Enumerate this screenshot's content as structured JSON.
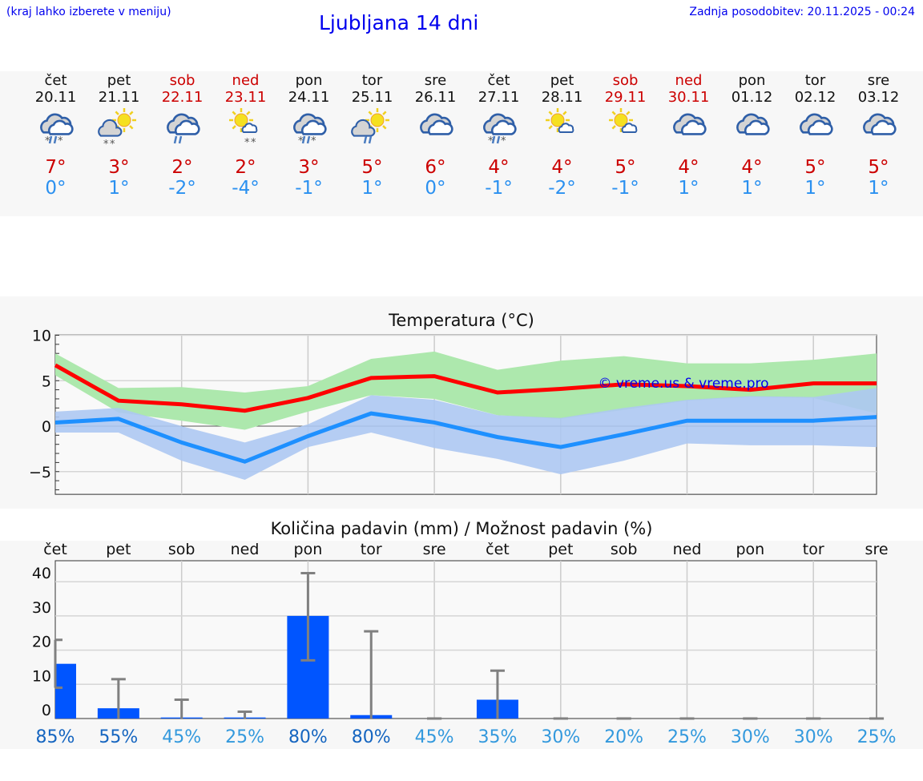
{
  "header": {
    "hint": "(kraj lahko izberete v meniju)",
    "title": "Ljubljana 14 dni",
    "updated": "Zadnja posodobitev: 20.11.2025 - 00:24"
  },
  "days": [
    {
      "name": "čet",
      "date": "20.11",
      "weekend": false,
      "icon": "overcast-rain-snow",
      "max": "7°",
      "min": "0°"
    },
    {
      "name": "pet",
      "date": "21.11",
      "weekend": false,
      "icon": "sun-cloud-snow",
      "max": "3°",
      "min": "1°"
    },
    {
      "name": "sob",
      "date": "22.11",
      "weekend": true,
      "icon": "overcast-rain",
      "max": "2°",
      "min": "-2°"
    },
    {
      "name": "ned",
      "date": "23.11",
      "weekend": true,
      "icon": "sun-small-cloud-snow",
      "max": "2°",
      "min": "-4°"
    },
    {
      "name": "pon",
      "date": "24.11",
      "weekend": false,
      "icon": "overcast-rain-snow",
      "max": "3°",
      "min": "-1°"
    },
    {
      "name": "tor",
      "date": "25.11",
      "weekend": false,
      "icon": "sun-cloud-rain",
      "max": "5°",
      "min": "1°"
    },
    {
      "name": "sre",
      "date": "26.11",
      "weekend": false,
      "icon": "overcast",
      "max": "6°",
      "min": "0°"
    },
    {
      "name": "čet",
      "date": "27.11",
      "weekend": false,
      "icon": "overcast-rain-snow",
      "max": "4°",
      "min": "-1°"
    },
    {
      "name": "pet",
      "date": "28.11",
      "weekend": false,
      "icon": "sun-small-cloud",
      "max": "4°",
      "min": "-2°"
    },
    {
      "name": "sob",
      "date": "29.11",
      "weekend": true,
      "icon": "sun-small-cloud",
      "max": "5°",
      "min": "-1°"
    },
    {
      "name": "ned",
      "date": "30.11",
      "weekend": true,
      "icon": "overcast",
      "max": "4°",
      "min": "1°"
    },
    {
      "name": "pon",
      "date": "01.12",
      "weekend": false,
      "icon": "overcast",
      "max": "4°",
      "min": "1°"
    },
    {
      "name": "tor",
      "date": "02.12",
      "weekend": false,
      "icon": "overcast",
      "max": "5°",
      "min": "1°"
    },
    {
      "name": "sre",
      "date": "03.12",
      "weekend": false,
      "icon": "overcast",
      "max": "5°",
      "min": "1°"
    }
  ],
  "colors": {
    "max": "#ff0000",
    "min": "#1e90ff",
    "max_band": "#ade8ad",
    "min_band": "#adc8f2",
    "bar": "#0055ff",
    "error": "#808080",
    "pct_high": "#1565c0",
    "pct_low": "#3399dd"
  },
  "chart_data": [
    {
      "type": "line",
      "title": "Temperatura (°C)",
      "watermark": "© vreme.us & vreme.pro",
      "ylim": [
        -7.5,
        10
      ],
      "yticks": [
        "10",
        "5",
        "0",
        "−5"
      ],
      "grid": true,
      "series": [
        {
          "values": [
            6.7,
            2.8,
            2.4,
            1.7,
            3.1,
            5.3,
            5.5,
            3.7,
            4.1,
            4.6,
            4.4,
            4.0,
            4.7,
            4.7
          ],
          "band_upper": [
            8.0,
            4.2,
            4.3,
            3.7,
            4.4,
            7.4,
            8.2,
            6.2,
            7.2,
            7.7,
            6.9,
            6.9,
            7.3,
            8.0
          ],
          "band_lower": [
            5.6,
            1.5,
            0.6,
            -0.4,
            1.6,
            3.4,
            3.0,
            1.2,
            0.8,
            1.8,
            2.8,
            3.2,
            3.1,
            1.4
          ]
        },
        {
          "values": [
            0.4,
            0.8,
            -1.8,
            -3.9,
            -1.1,
            1.4,
            0.4,
            -1.2,
            -2.3,
            -0.9,
            0.6,
            0.6,
            0.6,
            1.0
          ],
          "band_upper": [
            1.6,
            2.0,
            0,
            -1.8,
            0.2,
            3.4,
            2.9,
            1.2,
            0.9,
            2.0,
            2.9,
            3.3,
            3.2,
            4.2
          ],
          "band_lower": [
            -0.7,
            -0.7,
            -3.8,
            -5.9,
            -2.3,
            -0.7,
            -2.4,
            -3.6,
            -5.3,
            -3.8,
            -1.9,
            -2.1,
            -2.1,
            -2.3
          ]
        }
      ]
    },
    {
      "type": "bar",
      "title": "Količina padavin (mm) / Možnost padavin (%)",
      "categories": [
        "čet",
        "pet",
        "sob",
        "ned",
        "pon",
        "tor",
        "sre",
        "čet",
        "pet",
        "sob",
        "ned",
        "pon",
        "tor",
        "sre"
      ],
      "values": [
        16,
        3,
        0.3,
        0.3,
        30,
        1,
        0,
        5.5,
        0,
        0,
        0,
        0,
        0,
        0
      ],
      "error_low": [
        9,
        0,
        0,
        0,
        17,
        0,
        0,
        0,
        0,
        0,
        0,
        0,
        0,
        0
      ],
      "error_high": [
        23,
        11.5,
        5.5,
        2,
        42.5,
        25.5,
        0,
        14,
        0,
        0,
        0,
        0,
        0,
        0
      ],
      "probability": [
        "85%",
        "55%",
        "45%",
        "25%",
        "80%",
        "80%",
        "45%",
        "35%",
        "30%",
        "20%",
        "25%",
        "30%",
        "30%",
        "25%"
      ],
      "yticks": [
        "40",
        "30",
        "20",
        "10",
        "0"
      ],
      "ylim": [
        0,
        44
      ],
      "grid": true
    }
  ]
}
